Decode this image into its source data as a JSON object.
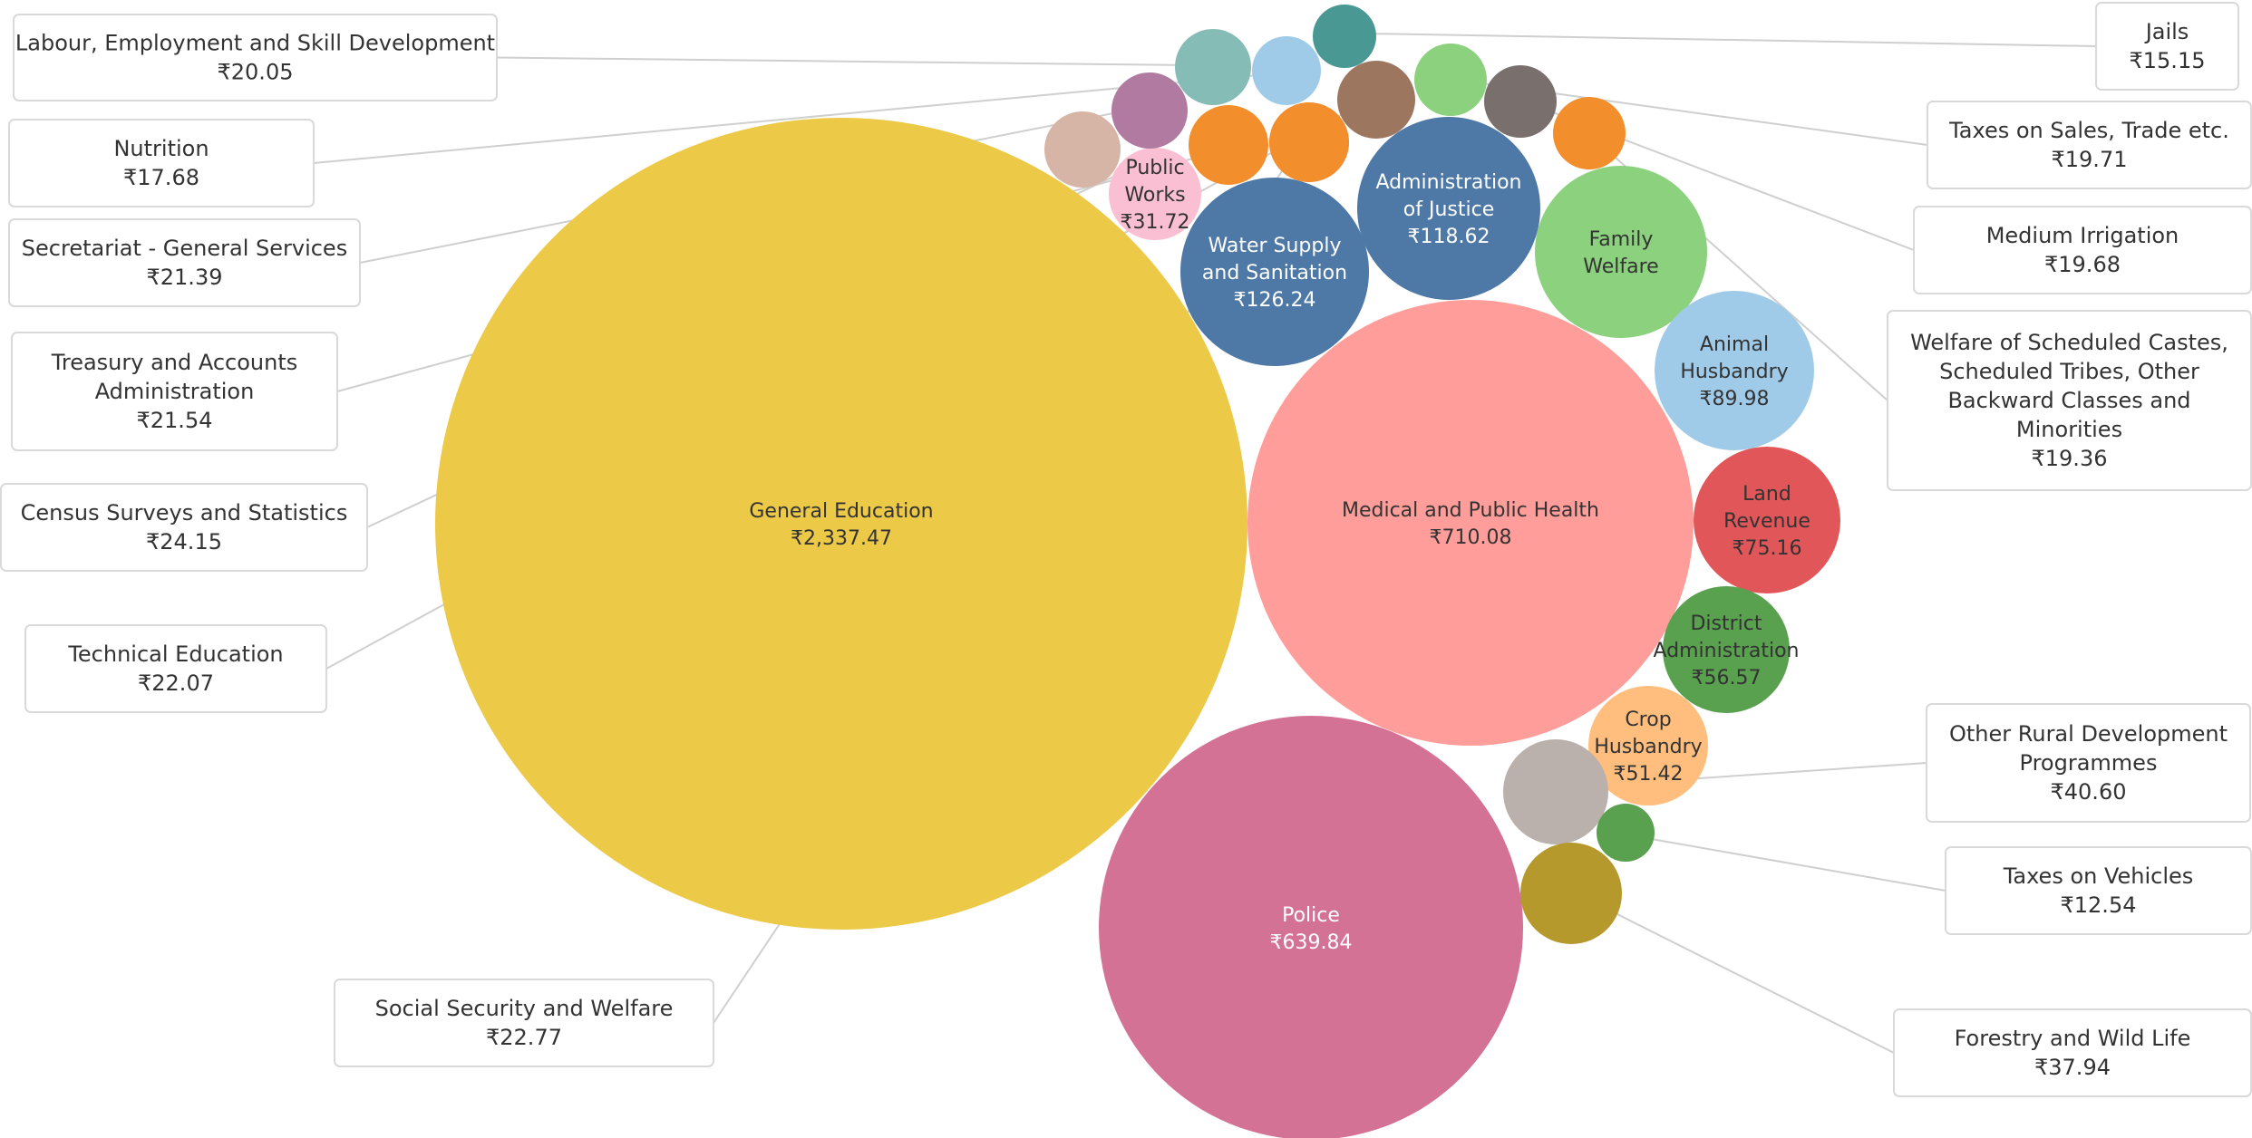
{
  "chart_data": {
    "type": "bubble",
    "currency": "₹",
    "bubbles": [
      {
        "id": "general-education",
        "label": "General Education",
        "value": 2337.47,
        "value_label": "₹2,337.47",
        "color": "#edc948",
        "text": "dark",
        "show_label": true
      },
      {
        "id": "medical-and-public-health",
        "label": "Medical and Public Health",
        "value": 710.08,
        "value_label": "₹710.08",
        "color": "#ff9d9a",
        "text": "dark",
        "show_label": true
      },
      {
        "id": "police",
        "label": "Police",
        "value": 639.84,
        "value_label": "₹639.84",
        "color": "#d37295",
        "text": "light",
        "show_label": true
      },
      {
        "id": "water-supply-and-sanitation",
        "label": "Water Supply and Sanitation",
        "value": 126.24,
        "value_label": "₹126.24",
        "color": "#4e79a7",
        "text": "light",
        "show_label": true
      },
      {
        "id": "administration-of-justice",
        "label": "Administration of Justice",
        "value": 118.62,
        "value_label": "₹118.62",
        "color": "#4e79a7",
        "text": "light",
        "show_label": true
      },
      {
        "id": "family-welfare",
        "label": "Family Welfare",
        "value": null,
        "value_label": "",
        "color": "#8cd17d",
        "text": "dark",
        "show_label": true
      },
      {
        "id": "animal-husbandry",
        "label": "Animal Husbandry",
        "value": 89.98,
        "value_label": "₹89.98",
        "color": "#a0cbe8",
        "text": "dark",
        "show_label": true
      },
      {
        "id": "land-revenue",
        "label": "Land Revenue",
        "value": 75.16,
        "value_label": "₹75.16",
        "color": "#e15759",
        "text": "dark",
        "show_label": true
      },
      {
        "id": "district-administration",
        "label": "District Administration",
        "value": 56.57,
        "value_label": "₹56.57",
        "color": "#59a14f",
        "text": "dark",
        "show_label": true
      },
      {
        "id": "crop-husbandry",
        "label": "Crop Husbandry",
        "value": 51.42,
        "value_label": "₹51.42",
        "color": "#ffbe7d",
        "text": "dark",
        "show_label": true
      },
      {
        "id": "other-rural-development-programmes",
        "label": "Other Rural Development Programmes",
        "value": 40.6,
        "value_label": "₹40.60",
        "color": "#bab0ac",
        "text": "dark",
        "show_label": false
      },
      {
        "id": "forestry-and-wild-life",
        "label": "Forestry and Wild Life",
        "value": 37.94,
        "value_label": "₹37.94",
        "color": "#b6992d",
        "text": "dark",
        "show_label": false
      },
      {
        "id": "public-works",
        "label": "Public Works",
        "value": 31.72,
        "value_label": "₹31.72",
        "color": "#fabfd2",
        "text": "dark",
        "show_label": true
      },
      {
        "id": "census-surveys-and-statistics",
        "label": "Census Surveys and Statistics",
        "value": 24.15,
        "value_label": "₹24.15",
        "color": "#d4a6c8",
        "text": "dark",
        "show_label": false
      },
      {
        "id": "social-security-and-welfare",
        "label": "Social Security and Welfare",
        "value": 22.77,
        "value_label": "₹22.77",
        "color": "#f28e2b",
        "text": "dark",
        "show_label": false
      },
      {
        "id": "technical-education",
        "label": "Technical Education",
        "value": 22.07,
        "value_label": "₹22.07",
        "color": "#9d7660",
        "text": "dark",
        "show_label": false
      },
      {
        "id": "treasury-and-accounts-administration",
        "label": "Treasury and Accounts Administration",
        "value": 21.54,
        "value_label": "₹21.54",
        "color": "#f28e2b",
        "text": "dark",
        "show_label": false
      },
      {
        "id": "secretariat-general-services",
        "label": "Secretariat - General Services",
        "value": 21.39,
        "value_label": "₹21.39",
        "color": "#d7b5a6",
        "text": "dark",
        "show_label": false
      },
      {
        "id": "labour-employment-and-skill-development",
        "label": "Labour, Employment and Skill Development",
        "value": 20.05,
        "value_label": "₹20.05",
        "color": "#86bcb6",
        "text": "dark",
        "show_label": false
      },
      {
        "id": "taxes-on-sales-trade",
        "label": "Taxes on Sales, Trade etc.",
        "value": 19.71,
        "value_label": "₹19.71",
        "color": "#8cd17d",
        "text": "dark",
        "show_label": false
      },
      {
        "id": "medium-irrigation",
        "label": "Medium Irrigation",
        "value": 19.68,
        "value_label": "₹19.68",
        "color": "#79706e",
        "text": "dark",
        "show_label": false
      },
      {
        "id": "welfare-of-scheduled-castes",
        "label": "Welfare of Scheduled Castes, Scheduled Tribes, Other Backward Classes and Minorities",
        "value": 19.36,
        "value_label": "₹19.36",
        "color": "#f28e2b",
        "text": "dark",
        "show_label": false
      },
      {
        "id": "nutrition",
        "label": "Nutrition",
        "value": 17.68,
        "value_label": "₹17.68",
        "color": "#b07aa1",
        "text": "dark",
        "show_label": false
      },
      {
        "id": "jails",
        "label": "Jails",
        "value": 15.15,
        "value_label": "₹15.15",
        "color": "#499894",
        "text": "dark",
        "show_label": false
      },
      {
        "id": "taxes-on-vehicles",
        "label": "Taxes on Vehicles",
        "value": 12.54,
        "value_label": "₹12.54",
        "color": "#59a14f",
        "text": "dark",
        "show_label": false
      },
      {
        "id": "unlabeled-light-blue",
        "label": "",
        "value": null,
        "value_label": "",
        "color": "#a0cbe8",
        "text": "dark",
        "show_label": false
      }
    ],
    "callouts": [
      {
        "target": "labour-employment-and-skill-development",
        "lines": [
          "Labour, Employment and Skill Development"
        ],
        "value_label": "₹20.05"
      },
      {
        "target": "nutrition",
        "lines": [
          "Nutrition"
        ],
        "value_label": "₹17.68"
      },
      {
        "target": "secretariat-general-services",
        "lines": [
          "Secretariat - General Services"
        ],
        "value_label": "₹21.39"
      },
      {
        "target": "treasury-and-accounts-administration",
        "lines": [
          "Treasury and Accounts",
          "Administration"
        ],
        "value_label": "₹21.54"
      },
      {
        "target": "census-surveys-and-statistics",
        "lines": [
          "Census Surveys and Statistics"
        ],
        "value_label": "₹24.15"
      },
      {
        "target": "technical-education",
        "lines": [
          "Technical Education"
        ],
        "value_label": "₹22.07"
      },
      {
        "target": "social-security-and-welfare",
        "lines": [
          "Social Security and Welfare"
        ],
        "value_label": "₹22.77"
      },
      {
        "target": "jails",
        "lines": [
          "Jails"
        ],
        "value_label": "₹15.15"
      },
      {
        "target": "taxes-on-sales-trade",
        "lines": [
          "Taxes on Sales, Trade etc."
        ],
        "value_label": "₹19.71"
      },
      {
        "target": "medium-irrigation",
        "lines": [
          "Medium Irrigation"
        ],
        "value_label": "₹19.68"
      },
      {
        "target": "welfare-of-scheduled-castes",
        "lines": [
          "Welfare of Scheduled Castes,",
          "Scheduled Tribes, Other",
          "Backward Classes and",
          "Minorities"
        ],
        "value_label": "₹19.36"
      },
      {
        "target": "other-rural-development-programmes",
        "lines": [
          "Other Rural Development",
          "Programmes"
        ],
        "value_label": "₹40.60"
      },
      {
        "target": "taxes-on-vehicles",
        "lines": [
          "Taxes on Vehicles"
        ],
        "value_label": "₹12.54"
      },
      {
        "target": "forestry-and-wild-life",
        "lines": [
          "Forestry and Wild Life"
        ],
        "value_label": "₹37.94"
      }
    ]
  }
}
